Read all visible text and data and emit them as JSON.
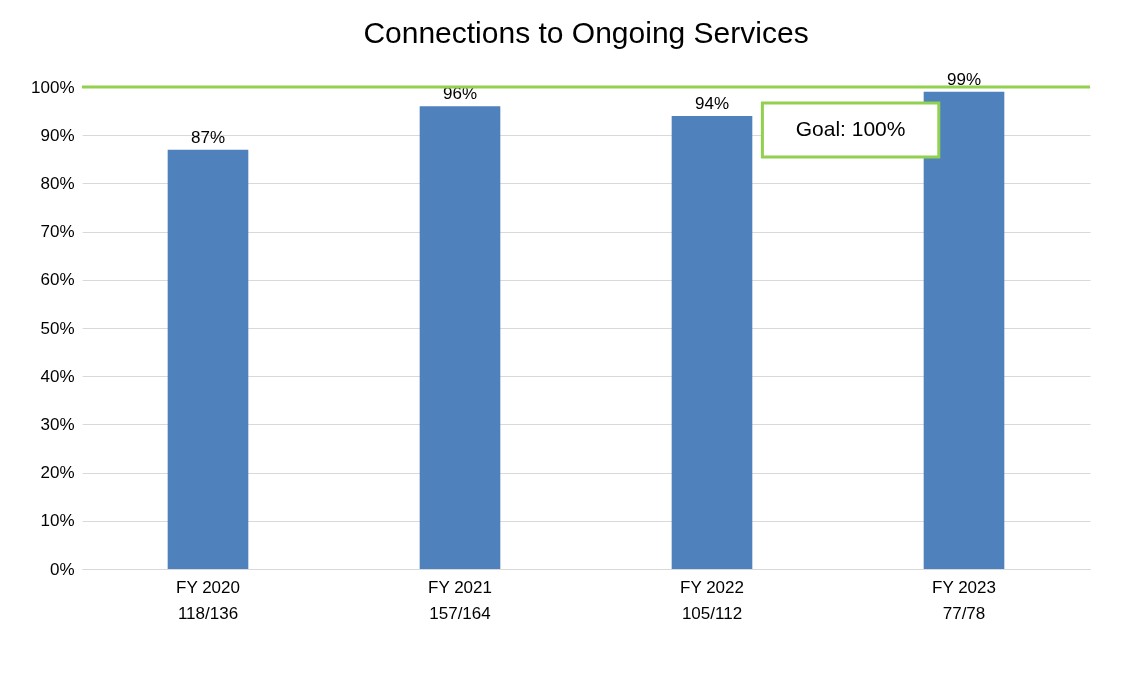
{
  "chart_data": {
    "type": "bar",
    "title": "Connections to Ongoing Services",
    "categories": [
      "FY 2020\n118/136",
      "FY 2021\n157/164",
      "FY 2022\n105/112",
      "FY 2023\n77/78"
    ],
    "values": [
      87,
      96,
      94,
      99
    ],
    "color": "#4f81bd",
    "value_labels": [
      "87%",
      "96%",
      "94%",
      "99%"
    ],
    "ylim": [
      0,
      100
    ],
    "yticks": [
      {
        "value": 0,
        "label": "0%"
      },
      {
        "value": 10,
        "label": "10%"
      },
      {
        "value": 20,
        "label": "20%"
      },
      {
        "value": 30,
        "label": "30%"
      },
      {
        "value": 40,
        "label": "40%"
      },
      {
        "value": 50,
        "label": "50%"
      },
      {
        "value": 60,
        "label": "60%"
      },
      {
        "value": 70,
        "label": "70%"
      },
      {
        "value": 80,
        "label": "80%"
      },
      {
        "value": 90,
        "label": "90%"
      },
      {
        "value": 100,
        "label": "100%"
      }
    ],
    "grid": "y",
    "ref_lines": [
      {
        "axis": "y",
        "value": 100,
        "label": "Goal: 100%",
        "color": "#92d050"
      }
    ]
  }
}
